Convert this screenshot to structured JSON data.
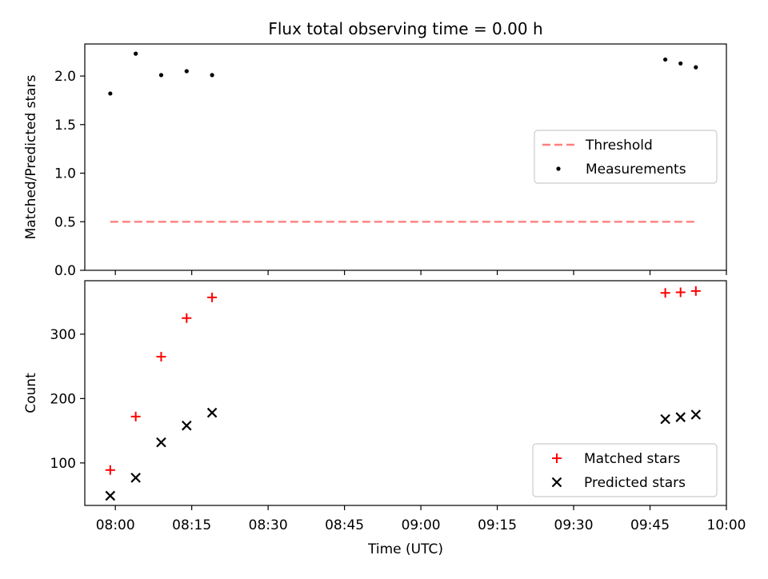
{
  "figure": {
    "title": "Flux total observing time = 0.00 h"
  },
  "chart_data": [
    {
      "type": "scatter",
      "ylabel": "Matched/Predicted stars",
      "xlabel": "",
      "ylim": [
        0,
        2.33
      ],
      "xlim": [
        "07:54",
        "10:00"
      ],
      "yticks": [
        0.0,
        0.5,
        1.0,
        1.5,
        2.0
      ],
      "ytick_labels": [
        "0.0",
        "0.5",
        "1.0",
        "1.5",
        "2.0"
      ],
      "grid": false,
      "legend_position": "center-right",
      "series": [
        {
          "name": "Threshold",
          "kind": "dashed-line",
          "color": "#ff7f7f",
          "x": [
            "07:59",
            "09:54"
          ],
          "y": [
            0.5,
            0.5
          ]
        },
        {
          "name": "Measurements",
          "kind": "dot",
          "color": "#000000",
          "x": [
            "07:59",
            "08:04",
            "08:09",
            "08:14",
            "08:19",
            "09:48",
            "09:51",
            "09:54"
          ],
          "y": [
            1.82,
            2.23,
            2.01,
            2.05,
            2.01,
            2.17,
            2.13,
            2.09
          ]
        }
      ]
    },
    {
      "type": "scatter",
      "ylabel": "Count",
      "xlabel": "Time (UTC)",
      "ylim": [
        34,
        383
      ],
      "xlim": [
        "07:54",
        "10:00"
      ],
      "yticks": [
        100,
        200,
        300
      ],
      "ytick_labels": [
        "100",
        "200",
        "300"
      ],
      "xticks": [
        "08:00",
        "08:15",
        "08:30",
        "08:45",
        "09:00",
        "09:15",
        "09:30",
        "09:45",
        "10:00"
      ],
      "xtick_labels": [
        "08:00",
        "08:15",
        "08:30",
        "08:45",
        "09:00",
        "09:15",
        "09:30",
        "09:45",
        "10:00"
      ],
      "grid": false,
      "legend_position": "lower-right",
      "series": [
        {
          "name": "Matched stars",
          "kind": "plus",
          "color": "#ff0000",
          "x": [
            "07:59",
            "08:04",
            "08:09",
            "08:14",
            "08:19",
            "09:48",
            "09:51",
            "09:54"
          ],
          "y": [
            89,
            172,
            265,
            325,
            357,
            364,
            365,
            367
          ]
        },
        {
          "name": "Predicted stars",
          "kind": "cross",
          "color": "#000000",
          "x": [
            "07:59",
            "08:04",
            "08:09",
            "08:14",
            "08:19",
            "09:48",
            "09:51",
            "09:54"
          ],
          "y": [
            49,
            77,
            132,
            158,
            178,
            168,
            171,
            175
          ]
        }
      ]
    }
  ]
}
